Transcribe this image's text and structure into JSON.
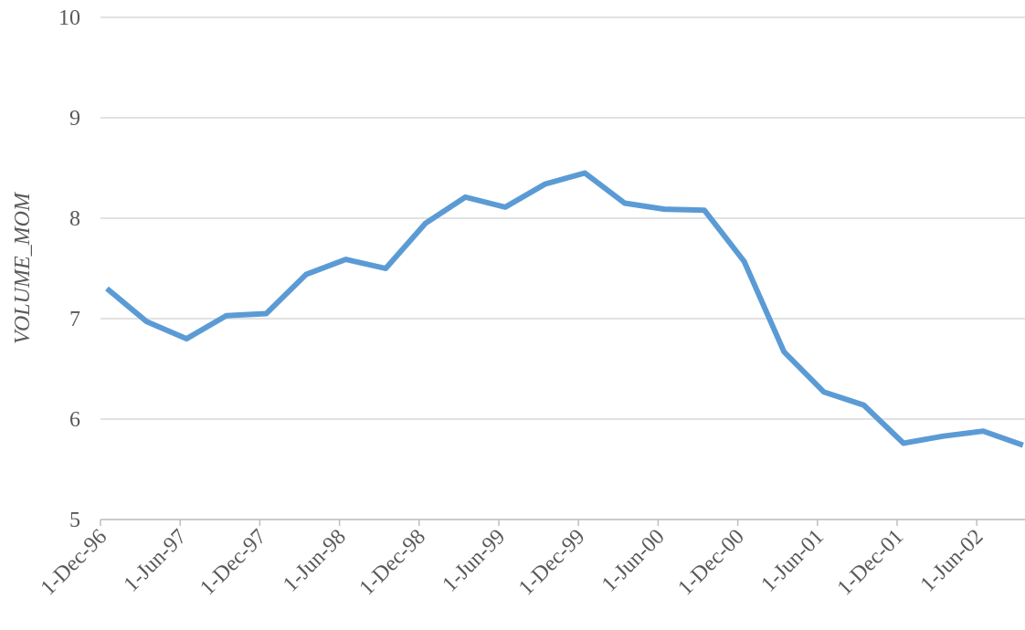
{
  "chart_data": {
    "type": "line",
    "y_label": "VOLUME_MOM",
    "categories": [
      "1-Dec-96",
      null,
      "1-Jun-97",
      null,
      "1-Dec-97",
      null,
      "1-Jun-98",
      null,
      "1-Dec-98",
      null,
      "1-Jun-99",
      null,
      "1-Dec-99",
      null,
      "1-Jun-00",
      null,
      "1-Dec-00",
      null,
      "1-Jun-01",
      null,
      "1-Dec-01",
      null,
      "1-Jun-02",
      null
    ],
    "series": [
      {
        "name": "VOLUME_MOM",
        "color": "#5b9bd5",
        "values": [
          7.3,
          6.97,
          6.8,
          7.03,
          7.05,
          7.44,
          7.59,
          7.5,
          7.95,
          8.21,
          8.11,
          8.34,
          8.45,
          8.15,
          8.09,
          8.08,
          7.57,
          6.67,
          6.27,
          6.14,
          5.76,
          5.83,
          5.88,
          5.74
        ]
      }
    ],
    "ylim": [
      5,
      10
    ],
    "yticks": [
      5,
      6,
      7,
      8,
      9,
      10
    ],
    "grid": true
  }
}
